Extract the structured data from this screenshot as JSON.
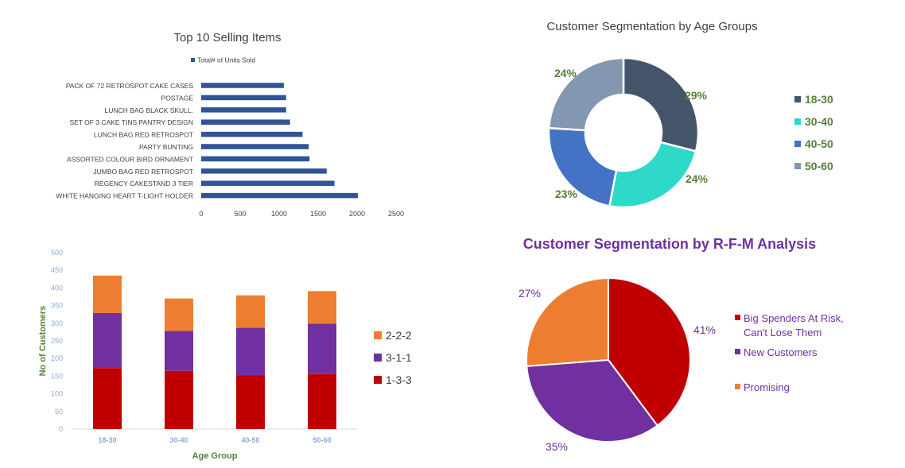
{
  "chart_data": [
    {
      "type": "bar",
      "orientation": "horizontal",
      "title": "Top 10 Selling Items",
      "legend": "Total# of Units Sold",
      "categories": [
        "PACK OF 72 RETROSPOT CAKE CASES",
        "POSTAGE",
        "LUNCH BAG  BLACK SKULL.",
        "SET OF 3 CAKE TINS PANTRY DESIGN",
        "LUNCH BAG RED RETROSPOT",
        "PARTY BUNTING",
        "ASSORTED COLOUR BIRD ORNAMENT",
        "JUMBO BAG RED RETROSPOT",
        "REGENCY CAKESTAND 3 TIER",
        "WHITE HANGING HEART T-LIGHT HOLDER"
      ],
      "values": [
        1060,
        1090,
        1090,
        1140,
        1300,
        1380,
        1390,
        1610,
        1710,
        2010
      ],
      "xlim": [
        0,
        2500
      ],
      "xticks": [
        "0",
        "500",
        "1000",
        "1500",
        "2000",
        "2500"
      ],
      "color": "#2F5597",
      "grid": false,
      "legend_position": "top"
    },
    {
      "type": "pie",
      "style": "donut",
      "title": "Customer Segmentation by Age Groups",
      "labels": [
        "18-30",
        "30-40",
        "40-50",
        "50-60"
      ],
      "values": [
        29,
        24,
        23,
        24
      ],
      "value_labels": [
        "29%",
        "24%",
        "23%",
        "24%"
      ],
      "colors": [
        "#44546A",
        "#2ED9C9",
        "#4472C4",
        "#8497B0"
      ],
      "label_color": "#548235",
      "legend_position": "right"
    },
    {
      "type": "bar",
      "stacked": true,
      "categories": [
        "18-30",
        "30-40",
        "40-50",
        "50-60"
      ],
      "series": [
        {
          "name": "1-3-3",
          "values": [
            173,
            165,
            153,
            156
          ],
          "color": "#C00000"
        },
        {
          "name": "3-1-1",
          "values": [
            156,
            113,
            134,
            143
          ],
          "color": "#7030A0"
        },
        {
          "name": "2-2-2",
          "values": [
            106,
            92,
            92,
            92
          ],
          "color": "#ED7D31"
        }
      ],
      "xlabel": "Age Group",
      "ylabel": "No of Customers",
      "ylim": [
        0,
        500
      ],
      "yticks": [
        "0",
        "50",
        "100",
        "150",
        "200",
        "250",
        "300",
        "350",
        "400",
        "450",
        "500"
      ],
      "grid": false,
      "legend_position": "right"
    },
    {
      "type": "pie",
      "title": "Customer Segmentation by R-F-M Analysis",
      "labels": [
        "Big Spenders At Risk,\nCan't Lose Them",
        "New Customers",
        "Promising"
      ],
      "legend_lines": [
        [
          "Big Spenders At Risk,",
          "Can't Lose Them"
        ],
        [
          "New Customers"
        ],
        [
          "Promising"
        ]
      ],
      "values": [
        41,
        35,
        27
      ],
      "value_labels": [
        "41%",
        "35%",
        "27%"
      ],
      "colors": [
        "#C00000",
        "#7030A0",
        "#ED7D31"
      ],
      "text_color": "#7030A0",
      "legend_position": "right"
    }
  ]
}
